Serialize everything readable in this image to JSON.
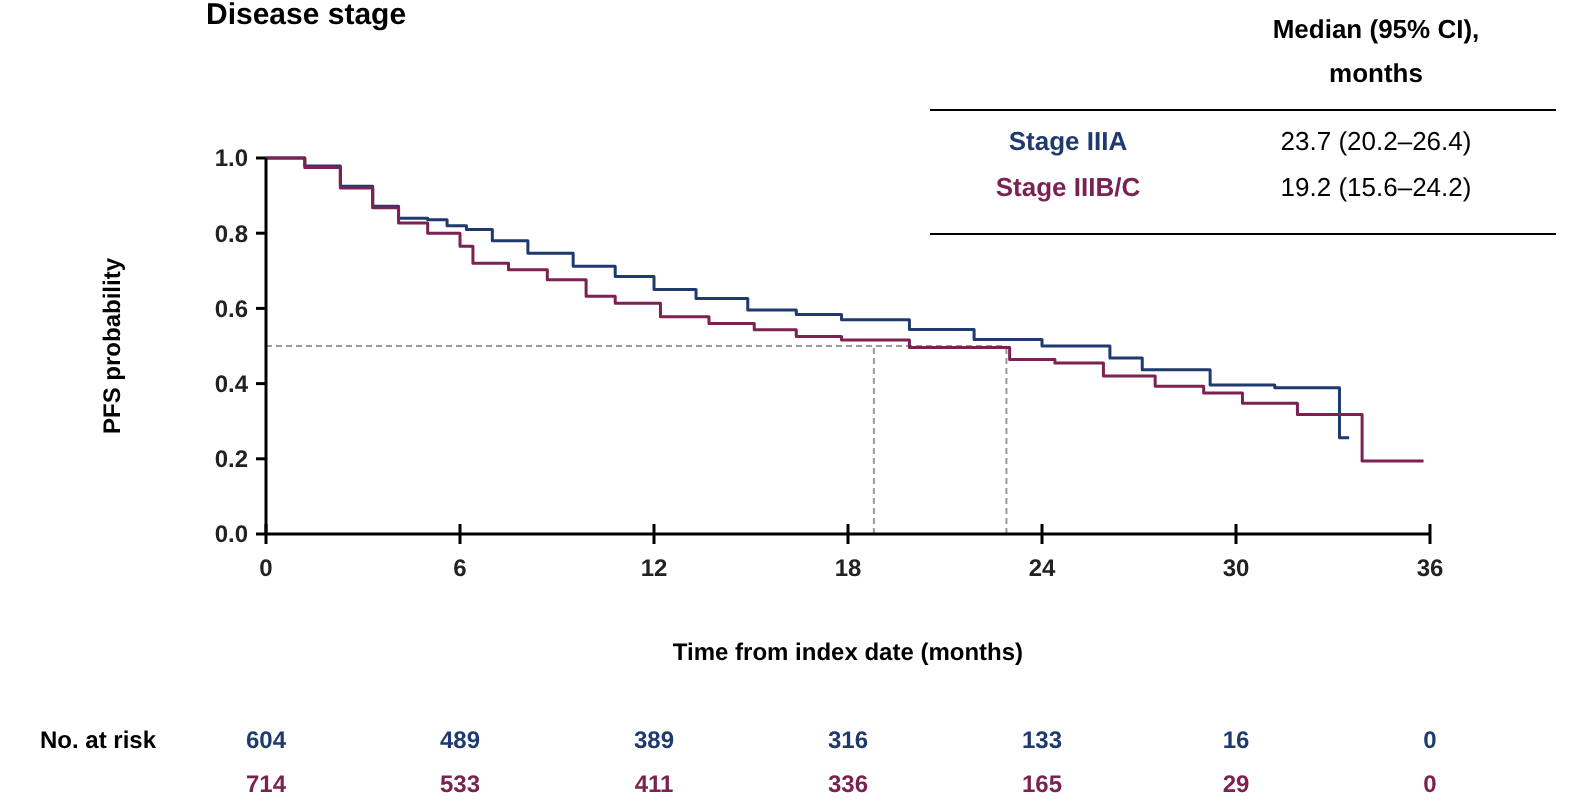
{
  "chart_data": {
    "type": "step",
    "title": "Disease stage",
    "xlabel": "Time from index date (months)",
    "ylabel": "PFS probability",
    "xlim": [
      0,
      36
    ],
    "xticks": [
      0,
      6,
      12,
      18,
      24,
      30,
      36
    ],
    "ylim": [
      0,
      1
    ],
    "yticks": [
      {
        "value": 0,
        "label": "0.0"
      },
      {
        "value": 0.2,
        "label": "0.2"
      },
      {
        "value": 0.4,
        "label": "0.4"
      },
      {
        "value": 0.6,
        "label": "0.6"
      },
      {
        "value": 0.8,
        "label": "0.8"
      },
      {
        "value": 1,
        "label": "1.0"
      }
    ],
    "grid": false,
    "legend": "top right",
    "line_style": "solid",
    "series": [
      {
        "name": "Stage IIIA",
        "color": "#1f3a6e",
        "x": [
          0,
          1.2,
          2.3,
          3.3,
          4.1,
          5.0,
          5.6,
          6.2,
          7.0,
          8.1,
          9.5,
          10.8,
          12,
          13.3,
          14.9,
          16.4,
          17.8,
          19.9,
          21.9,
          24,
          26.1,
          27.1,
          29.2,
          31.2,
          33.2,
          33.5
        ],
        "values": [
          1.0,
          0.979,
          0.925,
          0.872,
          0.84,
          0.836,
          0.82,
          0.81,
          0.78,
          0.747,
          0.712,
          0.685,
          0.65,
          0.626,
          0.596,
          0.584,
          0.57,
          0.544,
          0.517,
          0.5,
          0.468,
          0.437,
          0.396,
          0.389,
          0.256,
          0.256
        ]
      },
      {
        "name": "Stage IIIB/C",
        "color": "#7b2252",
        "x": [
          0,
          1.2,
          2.3,
          3.3,
          4.1,
          5.0,
          6.0,
          6.4,
          7.5,
          8.7,
          9.9,
          10.8,
          12.2,
          13.7,
          15.1,
          16.4,
          17.8,
          19.9,
          23,
          24.4,
          25.9,
          27.5,
          29,
          30.2,
          31.9,
          33.9,
          35.8
        ],
        "values": [
          1.0,
          0.975,
          0.92,
          0.868,
          0.827,
          0.8,
          0.765,
          0.72,
          0.703,
          0.676,
          0.632,
          0.614,
          0.578,
          0.56,
          0.543,
          0.525,
          0.516,
          0.496,
          0.464,
          0.455,
          0.42,
          0.393,
          0.375,
          0.348,
          0.318,
          0.194,
          0.194
        ]
      }
    ],
    "ref_lines": [
      {
        "axis": "y",
        "value": 0.5,
        "color": "#999999",
        "line_style": "dashed"
      },
      {
        "axis": "x",
        "value": 18.8,
        "color": "#999999",
        "line_style": "dashed"
      },
      {
        "axis": "x",
        "value": 22.9,
        "color": "#999999",
        "line_style": "dashed"
      }
    ],
    "annotations": [
      "Median (95% CI),",
      "months",
      "23.7 (20.2–26.4)",
      "19.2 (15.6–24.2)",
      "No. at risk",
      "604",
      "489",
      "389",
      "316",
      "133",
      "16",
      "0",
      "714",
      "533",
      "411",
      "336",
      "165",
      "29",
      "0"
    ]
  }
}
